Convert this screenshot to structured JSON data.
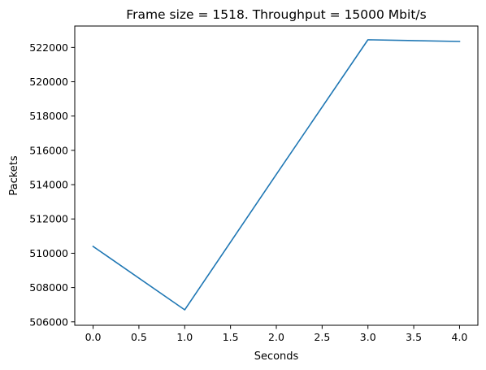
{
  "chart_data": {
    "type": "line",
    "title": "Frame size = 1518. Throughput = 15000 Mbit/s",
    "xlabel": "Seconds",
    "ylabel": "Packets",
    "xlim": [
      -0.2,
      4.2
    ],
    "ylim": [
      505800,
      523250
    ],
    "grid": false,
    "x_ticks": [
      0.0,
      0.5,
      1.0,
      1.5,
      2.0,
      2.5,
      3.0,
      3.5,
      4.0
    ],
    "x_tick_labels": [
      "0.0",
      "0.5",
      "1.0",
      "1.5",
      "2.0",
      "2.5",
      "3.0",
      "3.5",
      "4.0"
    ],
    "y_ticks": [
      506000,
      508000,
      510000,
      512000,
      514000,
      516000,
      518000,
      520000,
      522000
    ],
    "y_tick_labels": [
      "506000",
      "508000",
      "510000",
      "512000",
      "514000",
      "516000",
      "518000",
      "520000",
      "522000"
    ],
    "series": [
      {
        "color": "#1f77b4",
        "x": [
          0,
          1,
          2,
          3,
          4
        ],
        "y": [
          510400,
          506700,
          514600,
          522450,
          522350
        ]
      }
    ]
  }
}
